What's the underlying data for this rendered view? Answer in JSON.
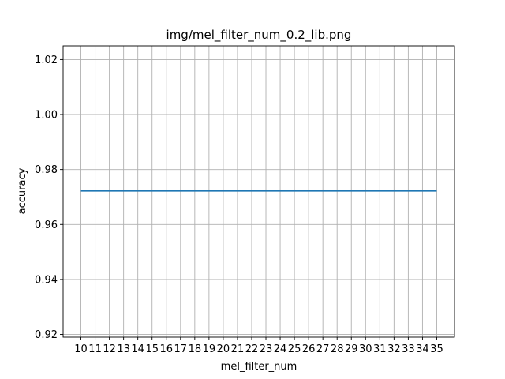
{
  "chart_data": {
    "type": "line",
    "title": "img/mel_filter_num_0.2_lib.png",
    "xlabel": "mel_filter_num",
    "ylabel": "accuracy",
    "x": [
      10,
      11,
      12,
      13,
      14,
      15,
      16,
      17,
      18,
      19,
      20,
      21,
      22,
      23,
      24,
      25,
      26,
      27,
      28,
      29,
      30,
      31,
      32,
      33,
      34,
      35
    ],
    "x_tick_labels": [
      "10",
      "11",
      "12",
      "13",
      "14",
      "15",
      "16",
      "17",
      "18",
      "19",
      "20",
      "21",
      "22",
      "23",
      "24",
      "25",
      "26",
      "27",
      "28",
      "29",
      "30",
      "31",
      "32",
      "33",
      "34",
      "35"
    ],
    "series": [
      {
        "values": [
          0.9722,
          0.9722,
          0.9722,
          0.9722,
          0.9722,
          0.9722,
          0.9722,
          0.9722,
          0.9722,
          0.9722,
          0.9722,
          0.9722,
          0.9722,
          0.9722,
          0.9722,
          0.9722,
          0.9722,
          0.9722,
          0.9722,
          0.9722,
          0.9722,
          0.9722,
          0.9722,
          0.9722,
          0.9722,
          0.9722
        ],
        "color": "#1f77b4"
      }
    ],
    "xlim": [
      8.75,
      36.25
    ],
    "ylim": [
      0.919,
      1.025
    ],
    "y_ticks": [
      0.92,
      0.94,
      0.96,
      0.98,
      1.0,
      1.02
    ],
    "y_tick_labels": [
      "0.92",
      "0.94",
      "0.96",
      "0.98",
      "1.00",
      "1.02"
    ],
    "grid": true
  }
}
